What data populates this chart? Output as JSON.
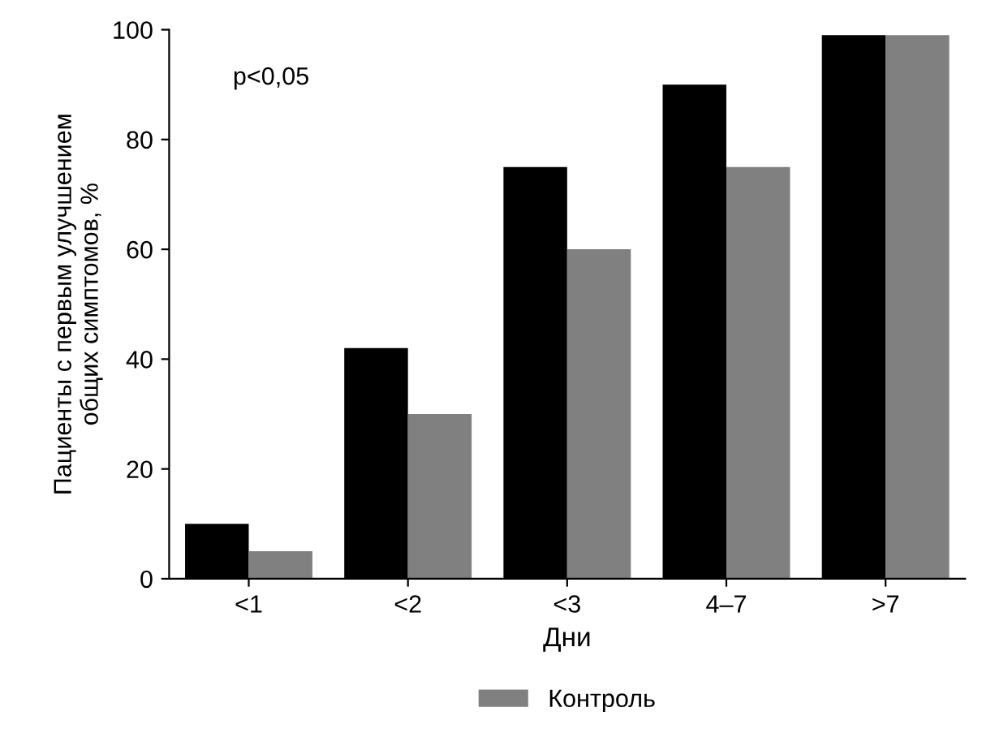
{
  "chart_data": {
    "type": "bar",
    "xlabel": "Дни",
    "ylabel": "Пациенты с первым улучшением\nобщих симптомов, %",
    "categories": [
      "<1",
      "<2",
      "<3",
      "4–7",
      ">7"
    ],
    "series": [
      {
        "color": "#000000",
        "values": [
          10,
          42,
          75,
          90,
          99
        ]
      },
      {
        "name": "Контроль",
        "color": "#808080",
        "values": [
          5,
          30,
          60,
          75,
          99
        ]
      }
    ],
    "ylim": [
      0,
      100
    ],
    "yticks": [
      0,
      20,
      40,
      60,
      80,
      100
    ],
    "grid": false,
    "legend": "bottom",
    "annotations": [
      "p<0,05"
    ]
  }
}
